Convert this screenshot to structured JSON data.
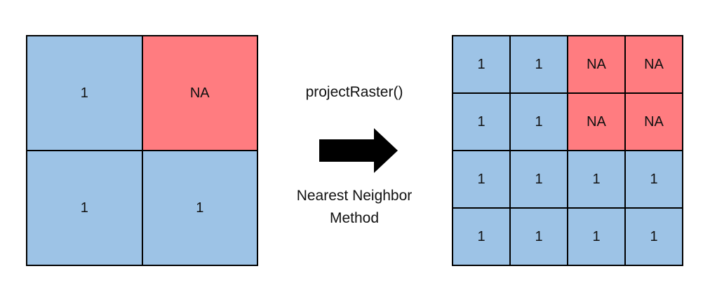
{
  "input_grid": {
    "cells": [
      {
        "value": "1",
        "color": "#9dc3e6"
      },
      {
        "value": "NA",
        "color": "#ff7c80"
      },
      {
        "value": "1",
        "color": "#9dc3e6"
      },
      {
        "value": "1",
        "color": "#9dc3e6"
      }
    ]
  },
  "output_grid": {
    "cells": [
      {
        "value": "1",
        "color": "#9dc3e6"
      },
      {
        "value": "1",
        "color": "#9dc3e6"
      },
      {
        "value": "NA",
        "color": "#ff7c80"
      },
      {
        "value": "NA",
        "color": "#ff7c80"
      },
      {
        "value": "1",
        "color": "#9dc3e6"
      },
      {
        "value": "1",
        "color": "#9dc3e6"
      },
      {
        "value": "NA",
        "color": "#ff7c80"
      },
      {
        "value": "NA",
        "color": "#ff7c80"
      },
      {
        "value": "1",
        "color": "#9dc3e6"
      },
      {
        "value": "1",
        "color": "#9dc3e6"
      },
      {
        "value": "1",
        "color": "#9dc3e6"
      },
      {
        "value": "1",
        "color": "#9dc3e6"
      },
      {
        "value": "1",
        "color": "#9dc3e6"
      },
      {
        "value": "1",
        "color": "#9dc3e6"
      },
      {
        "value": "1",
        "color": "#9dc3e6"
      },
      {
        "value": "1",
        "color": "#9dc3e6"
      }
    ]
  },
  "transform": {
    "function_label": "projectRaster()",
    "method_line1": "Nearest Neighbor",
    "method_line2": "Method",
    "arrow_icon": "right-arrow-icon"
  },
  "colors": {
    "blue_cell": "#9dc3e6",
    "red_cell": "#ff7c80"
  }
}
